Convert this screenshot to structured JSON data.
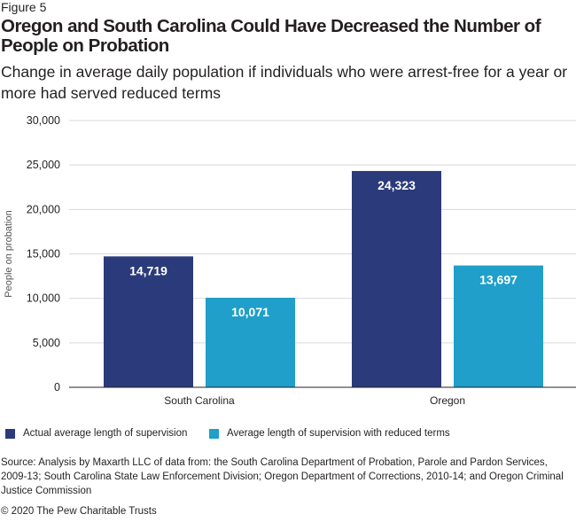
{
  "figure_label": "Figure 5",
  "title": "Oregon and South Carolina Could Have Decreased the Number of People on Probation",
  "subtitle": "Change in average daily population if individuals who were arrest-free for a year or more had served reduced terms",
  "source": "Source: Analysis by Maxarth LLC of data from: the South Carolina Department of Probation, Parole and Pardon Services, 2009-13; South Carolina State Law Enforcement Division; Oregon Department of Corrections, 2010-14; and Oregon Criminal Justice Commission",
  "copyright": "© 2020 The Pew Charitable Trusts",
  "colors": {
    "actual": "#2b3a7a",
    "reduced": "#1f9fca",
    "grid": "#d9d9d9",
    "axis": "#231f20"
  },
  "chart_data": {
    "type": "bar",
    "categories": [
      "South Carolina",
      "Oregon"
    ],
    "series": [
      {
        "name": "Actual average length of supervision",
        "values": [
          14719,
          24323
        ],
        "labels": [
          "14,719",
          "24,323"
        ]
      },
      {
        "name": "Average length of supervision with reduced terms",
        "values": [
          10071,
          13697
        ],
        "labels": [
          "10,071",
          "13,697"
        ]
      }
    ],
    "ylabel": "People on probation",
    "xlabel": "",
    "ylim": [
      0,
      30000
    ],
    "yticks": [
      0,
      5000,
      10000,
      15000,
      20000,
      25000,
      30000
    ],
    "ytick_labels": [
      "0",
      "5,000",
      "10,000",
      "15,000",
      "20,000",
      "25,000",
      "30,000"
    ],
    "grid": true,
    "legend": "bottom"
  }
}
